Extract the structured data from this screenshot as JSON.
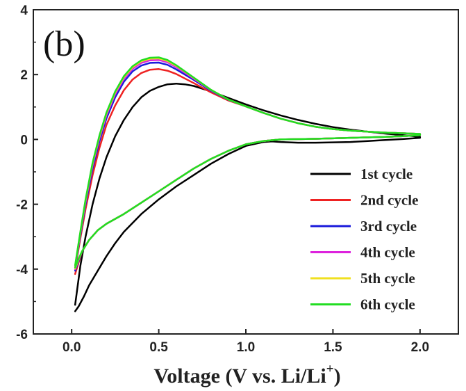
{
  "chart_data": {
    "type": "line",
    "panel_label": "(b)",
    "xlabel": "Voltage (V vs. Li/Li",
    "xlabel_sup": "+",
    "xlabel_end": ")",
    "ylabel": "",
    "xlim": [
      -0.22,
      2.22
    ],
    "ylim": [
      -6,
      4
    ],
    "xticks": [
      "0.0",
      "0.5",
      "1.0",
      "1.5",
      "2.0"
    ],
    "yticks": [
      "4",
      "2",
      "0",
      "-2",
      "-4",
      "-6"
    ],
    "legend_position": "bottom-right",
    "series": [
      {
        "name": "1st cycle",
        "color": "#000000",
        "x": [
          0.02,
          0.05,
          0.08,
          0.12,
          0.16,
          0.2,
          0.25,
          0.3,
          0.35,
          0.4,
          0.45,
          0.5,
          0.55,
          0.6,
          0.65,
          0.7,
          0.8,
          0.9,
          1.0,
          1.1,
          1.2,
          1.3,
          1.4,
          1.5,
          1.6,
          1.7,
          1.8,
          1.9,
          2.0,
          2.0,
          1.9,
          1.8,
          1.7,
          1.6,
          1.5,
          1.4,
          1.3,
          1.2,
          1.15,
          1.1,
          1.0,
          0.9,
          0.8,
          0.7,
          0.6,
          0.5,
          0.4,
          0.3,
          0.25,
          0.2,
          0.15,
          0.1,
          0.07,
          0.04,
          0.02
        ],
        "y": [
          -5.1,
          -3.9,
          -3.0,
          -2.0,
          -1.2,
          -0.55,
          0.1,
          0.6,
          1.0,
          1.3,
          1.5,
          1.62,
          1.7,
          1.72,
          1.7,
          1.65,
          1.48,
          1.28,
          1.08,
          0.9,
          0.74,
          0.6,
          0.48,
          0.38,
          0.3,
          0.24,
          0.18,
          0.13,
          0.08,
          0.05,
          0.01,
          -0.02,
          -0.05,
          -0.08,
          -0.09,
          -0.1,
          -0.1,
          -0.08,
          -0.06,
          -0.08,
          -0.2,
          -0.45,
          -0.75,
          -1.1,
          -1.45,
          -1.85,
          -2.3,
          -2.85,
          -3.2,
          -3.6,
          -4.05,
          -4.5,
          -4.85,
          -5.15,
          -5.3
        ]
      },
      {
        "name": "2nd cycle",
        "color": "#ee2222",
        "x": [
          0.02,
          0.05,
          0.08,
          0.12,
          0.16,
          0.2,
          0.25,
          0.3,
          0.35,
          0.4,
          0.45,
          0.5,
          0.55,
          0.6,
          0.65,
          0.7,
          0.8,
          0.9,
          1.0,
          1.1,
          1.2,
          1.3,
          1.4,
          1.5,
          1.6,
          1.7,
          1.8,
          1.9,
          2.0,
          2.0,
          1.9,
          1.8,
          1.6,
          1.4,
          1.2,
          1.1,
          1.0,
          0.9,
          0.8,
          0.7,
          0.6,
          0.5,
          0.4,
          0.3,
          0.2,
          0.15,
          0.1,
          0.06,
          0.04,
          0.02
        ],
        "y": [
          -4.0,
          -3.05,
          -2.15,
          -1.1,
          -0.25,
          0.45,
          1.05,
          1.52,
          1.85,
          2.05,
          2.15,
          2.17,
          2.12,
          2.02,
          1.88,
          1.74,
          1.45,
          1.2,
          1.02,
          0.82,
          0.64,
          0.5,
          0.39,
          0.32,
          0.27,
          0.24,
          0.21,
          0.19,
          0.17,
          0.13,
          0.1,
          0.08,
          0.05,
          0.02,
          0.0,
          -0.05,
          -0.15,
          -0.35,
          -0.6,
          -0.9,
          -1.25,
          -1.6,
          -1.95,
          -2.3,
          -2.6,
          -2.8,
          -3.1,
          -3.45,
          -3.8,
          -4.15
        ]
      },
      {
        "name": "3rd cycle",
        "color": "#1a1adb",
        "x": [
          0.02,
          0.05,
          0.08,
          0.12,
          0.16,
          0.2,
          0.25,
          0.3,
          0.35,
          0.4,
          0.45,
          0.5,
          0.55,
          0.6,
          0.65,
          0.7,
          0.8,
          0.9,
          1.0,
          1.1,
          1.2,
          1.3,
          1.4,
          1.5,
          1.6,
          1.7,
          1.8,
          1.9,
          2.0,
          2.0,
          1.9,
          1.8,
          1.6,
          1.4,
          1.2,
          1.1,
          1.0,
          0.9,
          0.8,
          0.7,
          0.6,
          0.5,
          0.4,
          0.3,
          0.2,
          0.15,
          0.1,
          0.06,
          0.04,
          0.02
        ],
        "y": [
          -3.95,
          -2.95,
          -2.0,
          -0.9,
          -0.05,
          0.65,
          1.3,
          1.78,
          2.1,
          2.28,
          2.36,
          2.37,
          2.3,
          2.16,
          2.0,
          1.84,
          1.5,
          1.22,
          1.02,
          0.82,
          0.64,
          0.5,
          0.39,
          0.32,
          0.27,
          0.24,
          0.21,
          0.19,
          0.17,
          0.13,
          0.1,
          0.08,
          0.05,
          0.02,
          0.0,
          -0.05,
          -0.15,
          -0.35,
          -0.6,
          -0.9,
          -1.25,
          -1.6,
          -1.95,
          -2.3,
          -2.6,
          -2.8,
          -3.1,
          -3.45,
          -3.75,
          -4.05
        ]
      },
      {
        "name": "4th cycle",
        "color": "#dd22dd",
        "x": [
          0.02,
          0.05,
          0.08,
          0.12,
          0.16,
          0.2,
          0.25,
          0.3,
          0.35,
          0.4,
          0.45,
          0.5,
          0.55,
          0.6,
          0.65,
          0.7,
          0.8,
          0.9,
          1.0,
          1.1,
          1.2,
          1.3,
          1.4,
          1.5,
          1.6,
          1.7,
          1.8,
          1.9,
          2.0,
          2.0,
          1.9,
          1.8,
          1.6,
          1.4,
          1.2,
          1.1,
          1.0,
          0.9,
          0.8,
          0.7,
          0.6,
          0.5,
          0.4,
          0.3,
          0.2,
          0.15,
          0.1,
          0.06,
          0.04,
          0.02
        ],
        "y": [
          -3.92,
          -2.9,
          -1.92,
          -0.8,
          0.05,
          0.75,
          1.4,
          1.87,
          2.18,
          2.36,
          2.44,
          2.45,
          2.38,
          2.23,
          2.06,
          1.88,
          1.52,
          1.23,
          1.02,
          0.82,
          0.64,
          0.5,
          0.39,
          0.32,
          0.27,
          0.24,
          0.21,
          0.19,
          0.17,
          0.13,
          0.1,
          0.08,
          0.05,
          0.02,
          0.0,
          -0.05,
          -0.15,
          -0.35,
          -0.6,
          -0.9,
          -1.25,
          -1.6,
          -1.95,
          -2.3,
          -2.6,
          -2.8,
          -3.1,
          -3.45,
          -3.72,
          -4.0
        ]
      },
      {
        "name": "5th cycle",
        "color": "#f0e020",
        "x": [
          0.02,
          0.05,
          0.08,
          0.12,
          0.16,
          0.2,
          0.25,
          0.3,
          0.35,
          0.4,
          0.45,
          0.5,
          0.55,
          0.6,
          0.65,
          0.7,
          0.8,
          0.9,
          1.0,
          1.1,
          1.2,
          1.3,
          1.4,
          1.5,
          1.6,
          1.7,
          1.8,
          1.9,
          2.0,
          2.0,
          1.9,
          1.8,
          1.6,
          1.4,
          1.2,
          1.1,
          1.0,
          0.9,
          0.8,
          0.7,
          0.6,
          0.5,
          0.4,
          0.3,
          0.2,
          0.15,
          0.1,
          0.06,
          0.04,
          0.02
        ],
        "y": [
          -3.9,
          -2.87,
          -1.88,
          -0.75,
          0.1,
          0.8,
          1.45,
          1.92,
          2.23,
          2.41,
          2.49,
          2.5,
          2.42,
          2.27,
          2.09,
          1.9,
          1.53,
          1.23,
          1.02,
          0.82,
          0.64,
          0.5,
          0.39,
          0.32,
          0.27,
          0.24,
          0.21,
          0.19,
          0.17,
          0.13,
          0.1,
          0.08,
          0.05,
          0.02,
          0.0,
          -0.05,
          -0.15,
          -0.35,
          -0.6,
          -0.9,
          -1.25,
          -1.6,
          -1.95,
          -2.3,
          -2.6,
          -2.8,
          -3.1,
          -3.45,
          -3.7,
          -3.98
        ]
      },
      {
        "name": "6th cycle",
        "color": "#22dd22",
        "x": [
          0.02,
          0.05,
          0.08,
          0.12,
          0.16,
          0.2,
          0.25,
          0.3,
          0.35,
          0.4,
          0.45,
          0.5,
          0.55,
          0.6,
          0.65,
          0.7,
          0.8,
          0.9,
          1.0,
          1.1,
          1.2,
          1.3,
          1.4,
          1.5,
          1.6,
          1.7,
          1.8,
          1.9,
          2.0,
          2.0,
          1.9,
          1.8,
          1.6,
          1.4,
          1.2,
          1.1,
          1.0,
          0.9,
          0.8,
          0.7,
          0.6,
          0.5,
          0.4,
          0.3,
          0.2,
          0.15,
          0.1,
          0.06,
          0.04,
          0.02
        ],
        "y": [
          -3.88,
          -2.85,
          -1.85,
          -0.72,
          0.13,
          0.83,
          1.48,
          1.95,
          2.26,
          2.44,
          2.52,
          2.53,
          2.45,
          2.29,
          2.1,
          1.91,
          1.53,
          1.23,
          1.02,
          0.82,
          0.64,
          0.5,
          0.39,
          0.32,
          0.27,
          0.24,
          0.21,
          0.19,
          0.17,
          0.13,
          0.1,
          0.08,
          0.05,
          0.02,
          0.0,
          -0.05,
          -0.15,
          -0.35,
          -0.6,
          -0.9,
          -1.25,
          -1.6,
          -1.95,
          -2.3,
          -2.6,
          -2.8,
          -3.1,
          -3.45,
          -3.68,
          -3.95
        ]
      }
    ]
  }
}
